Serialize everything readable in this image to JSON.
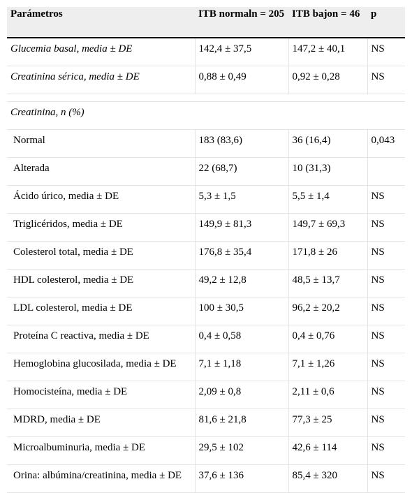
{
  "table": {
    "headers": [
      "Parámetros",
      "ITB normaln = 205",
      "ITB bajon = 46",
      "p"
    ],
    "rows_top": [
      {
        "label": "Glucemia basal, media ± DE",
        "normal": "142,4 ± 37,5",
        "bajo": "147,2 ± 40,1",
        "p": "NS"
      },
      {
        "label": "Creatinina sérica, media ± DE",
        "normal": "0,88 ± 0,49",
        "bajo": "0,92 ± 0,28",
        "p": "NS"
      }
    ],
    "group_label": "Creatinina, n (%)",
    "rows_bottom": [
      {
        "label": "Normal",
        "normal": "183 (83,6)",
        "bajo": "36 (16,4)",
        "p": "0,043"
      },
      {
        "label": "Alterada",
        "normal": "22 (68,7)",
        "bajo": "10 (31,3)",
        "p": ""
      },
      {
        "label": "Ácido úrico, media ± DE",
        "normal": "5,3 ± 1,5",
        "bajo": "5,5 ± 1,4",
        "p": "NS"
      },
      {
        "label": "Triglicéridos, media ± DE",
        "normal": "149,9 ± 81,3",
        "bajo": "149,7 ± 69,3",
        "p": "NS"
      },
      {
        "label": "Colesterol total, media ± DE",
        "normal": "176,8 ± 35,4",
        "bajo": "171,8 ± 26",
        "p": "NS"
      },
      {
        "label": "HDL colesterol, media ± DE",
        "normal": "49,2 ± 12,8",
        "bajo": "48,5 ± 13,7",
        "p": "NS"
      },
      {
        "label": "LDL colesterol, media ± DE",
        "normal": "100 ± 30,5",
        "bajo": "96,2 ± 20,2",
        "p": "NS"
      },
      {
        "label": "Proteína C reactiva, media ± DE",
        "normal": "0,4 ± 0,58",
        "bajo": "0,4 ± 0,76",
        "p": "NS"
      },
      {
        "label": "Hemoglobina glucosilada, media ± DE",
        "normal": "7,1 ± 1,18",
        "bajo": "7,1 ± 1,26",
        "p": "NS"
      },
      {
        "label": "Homocisteína, media ± DE",
        "normal": "2,09 ± 0,8",
        "bajo": "2,11 ± 0,6",
        "p": "NS"
      },
      {
        "label": "MDRD, media ± DE",
        "normal": "81,6 ± 21,8",
        "bajo": "77,3 ± 25",
        "p": "NS"
      },
      {
        "label": "Microalbuminuria, media ± DE",
        "normal": "29,5 ± 102",
        "bajo": "42,6 ± 114",
        "p": "NS"
      },
      {
        "label": "Orina: albúmina/creatinina, media ± DE",
        "normal": "37,6 ± 136",
        "bajo": "85,4 ± 320",
        "p": "NS"
      }
    ]
  }
}
